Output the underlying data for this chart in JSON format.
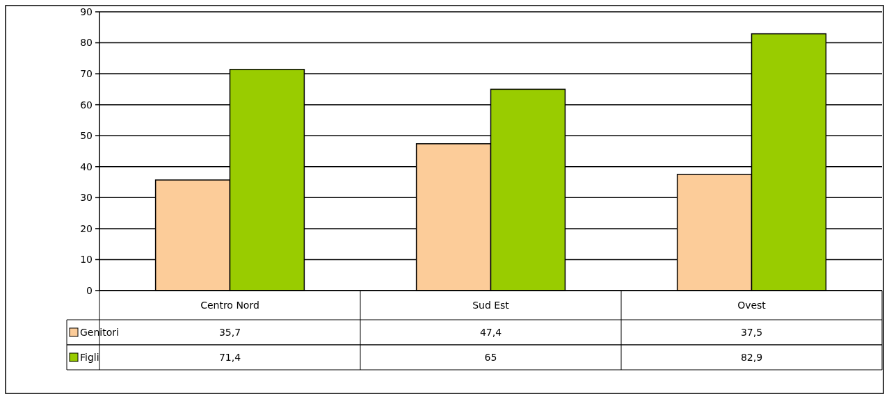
{
  "chart_data": {
    "type": "bar",
    "categories": [
      "Centro Nord",
      "Sud Est",
      "Ovest"
    ],
    "series": [
      {
        "name": "Genitori",
        "color": "#fccc99",
        "values": [
          35.7,
          47.4,
          37.5
        ],
        "value_labels": [
          "35,7",
          "47,4",
          "37,5"
        ]
      },
      {
        "name": "Figli",
        "color": "#99cc00",
        "values": [
          71.4,
          65,
          82.9
        ],
        "value_labels": [
          "71,4",
          "65",
          "82,9"
        ]
      }
    ],
    "ylim": [
      0,
      90
    ],
    "yticks": [
      0,
      10,
      20,
      30,
      40,
      50,
      60,
      70,
      80,
      90
    ],
    "grid": "y",
    "legend": "bottom left"
  }
}
